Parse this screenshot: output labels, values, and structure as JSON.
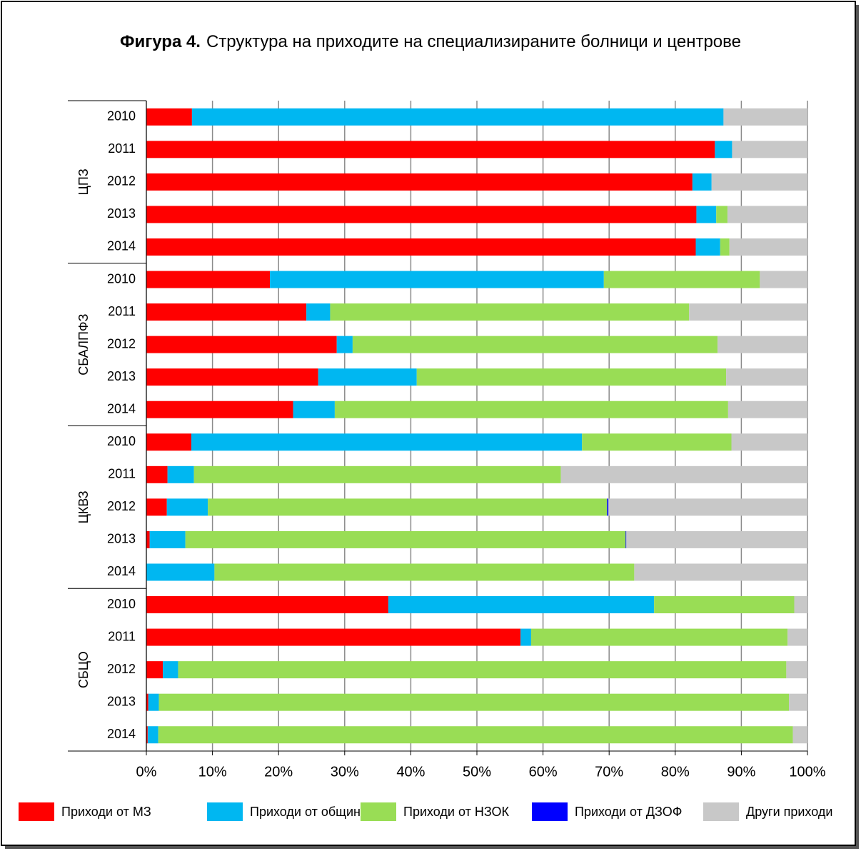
{
  "chart_data": {
    "type": "stacked_barh",
    "title_label": "Фигура 4.",
    "title": "Структура на приходите на специализираните болници и центрове",
    "groups": [
      {
        "name": "ЦПЗ",
        "categories": [
          "2010",
          "2011",
          "2012",
          "2013",
          "2014"
        ]
      },
      {
        "name": "СБАЛПФЗ",
        "categories": [
          "2010",
          "2011",
          "2012",
          "2013",
          "2014"
        ]
      },
      {
        "name": "ЦКВЗ",
        "categories": [
          "2010",
          "2011",
          "2012",
          "2013",
          "2014"
        ]
      },
      {
        "name": "СБЦО",
        "categories": [
          "2010",
          "2011",
          "2012",
          "2013",
          "2014"
        ]
      }
    ],
    "series": [
      {
        "name": "Приходи от МЗ",
        "color": "#ff0000",
        "values": [
          6.9,
          86.0,
          82.6,
          83.2,
          83.1,
          18.7,
          24.2,
          28.8,
          26.0,
          22.2,
          6.8,
          3.2,
          3.1,
          0.5,
          0,
          36.6,
          56.6,
          2.5,
          0.3,
          0.2
        ]
      },
      {
        "name": "Приходи от община",
        "color": "#00b7f1",
        "values": [
          80.4,
          2.6,
          2.9,
          3.0,
          3.7,
          50.5,
          3.6,
          2.4,
          14.9,
          6.3,
          59.1,
          4.0,
          6.2,
          5.4,
          10.3,
          40.2,
          1.6,
          2.3,
          1.6,
          1.6
        ]
      },
      {
        "name": "Приходи от НЗОК",
        "color": "#99dd55",
        "values": [
          0,
          0,
          0,
          1.7,
          1.4,
          23.6,
          54.3,
          55.2,
          46.8,
          59.5,
          22.6,
          55.5,
          60.4,
          66.6,
          63.5,
          21.2,
          38.8,
          92.0,
          95.3,
          96.0
        ]
      },
      {
        "name": "Приходи от ДЗОФ",
        "color": "#0000ff",
        "values": [
          0,
          0,
          0,
          0,
          0,
          0,
          0,
          0,
          0,
          0,
          0,
          0,
          0.2,
          0.1,
          0,
          0,
          0,
          0,
          0,
          0
        ]
      },
      {
        "name": "Други приходи",
        "color": "#c8c8c8",
        "values": [
          12.7,
          11.4,
          14.5,
          12.1,
          11.8,
          7.2,
          17.9,
          13.6,
          12.3,
          12.0,
          11.5,
          37.3,
          30.1,
          27.4,
          26.2,
          2.0,
          3.0,
          3.2,
          2.8,
          2.2
        ]
      }
    ],
    "xlim": [
      0,
      100
    ],
    "xticks": [
      {
        "value": 0,
        "label": "0%"
      },
      {
        "value": 10,
        "label": "10%"
      },
      {
        "value": 20,
        "label": "20%"
      },
      {
        "value": 30,
        "label": "30%"
      },
      {
        "value": 40,
        "label": "40%"
      },
      {
        "value": 50,
        "label": "50%"
      },
      {
        "value": 60,
        "label": "60%"
      },
      {
        "value": 70,
        "label": "70%"
      },
      {
        "value": 80,
        "label": "80%"
      },
      {
        "value": 90,
        "label": "90%"
      },
      {
        "value": 100,
        "label": "100%"
      }
    ],
    "grid": true,
    "legend": "bottom"
  }
}
